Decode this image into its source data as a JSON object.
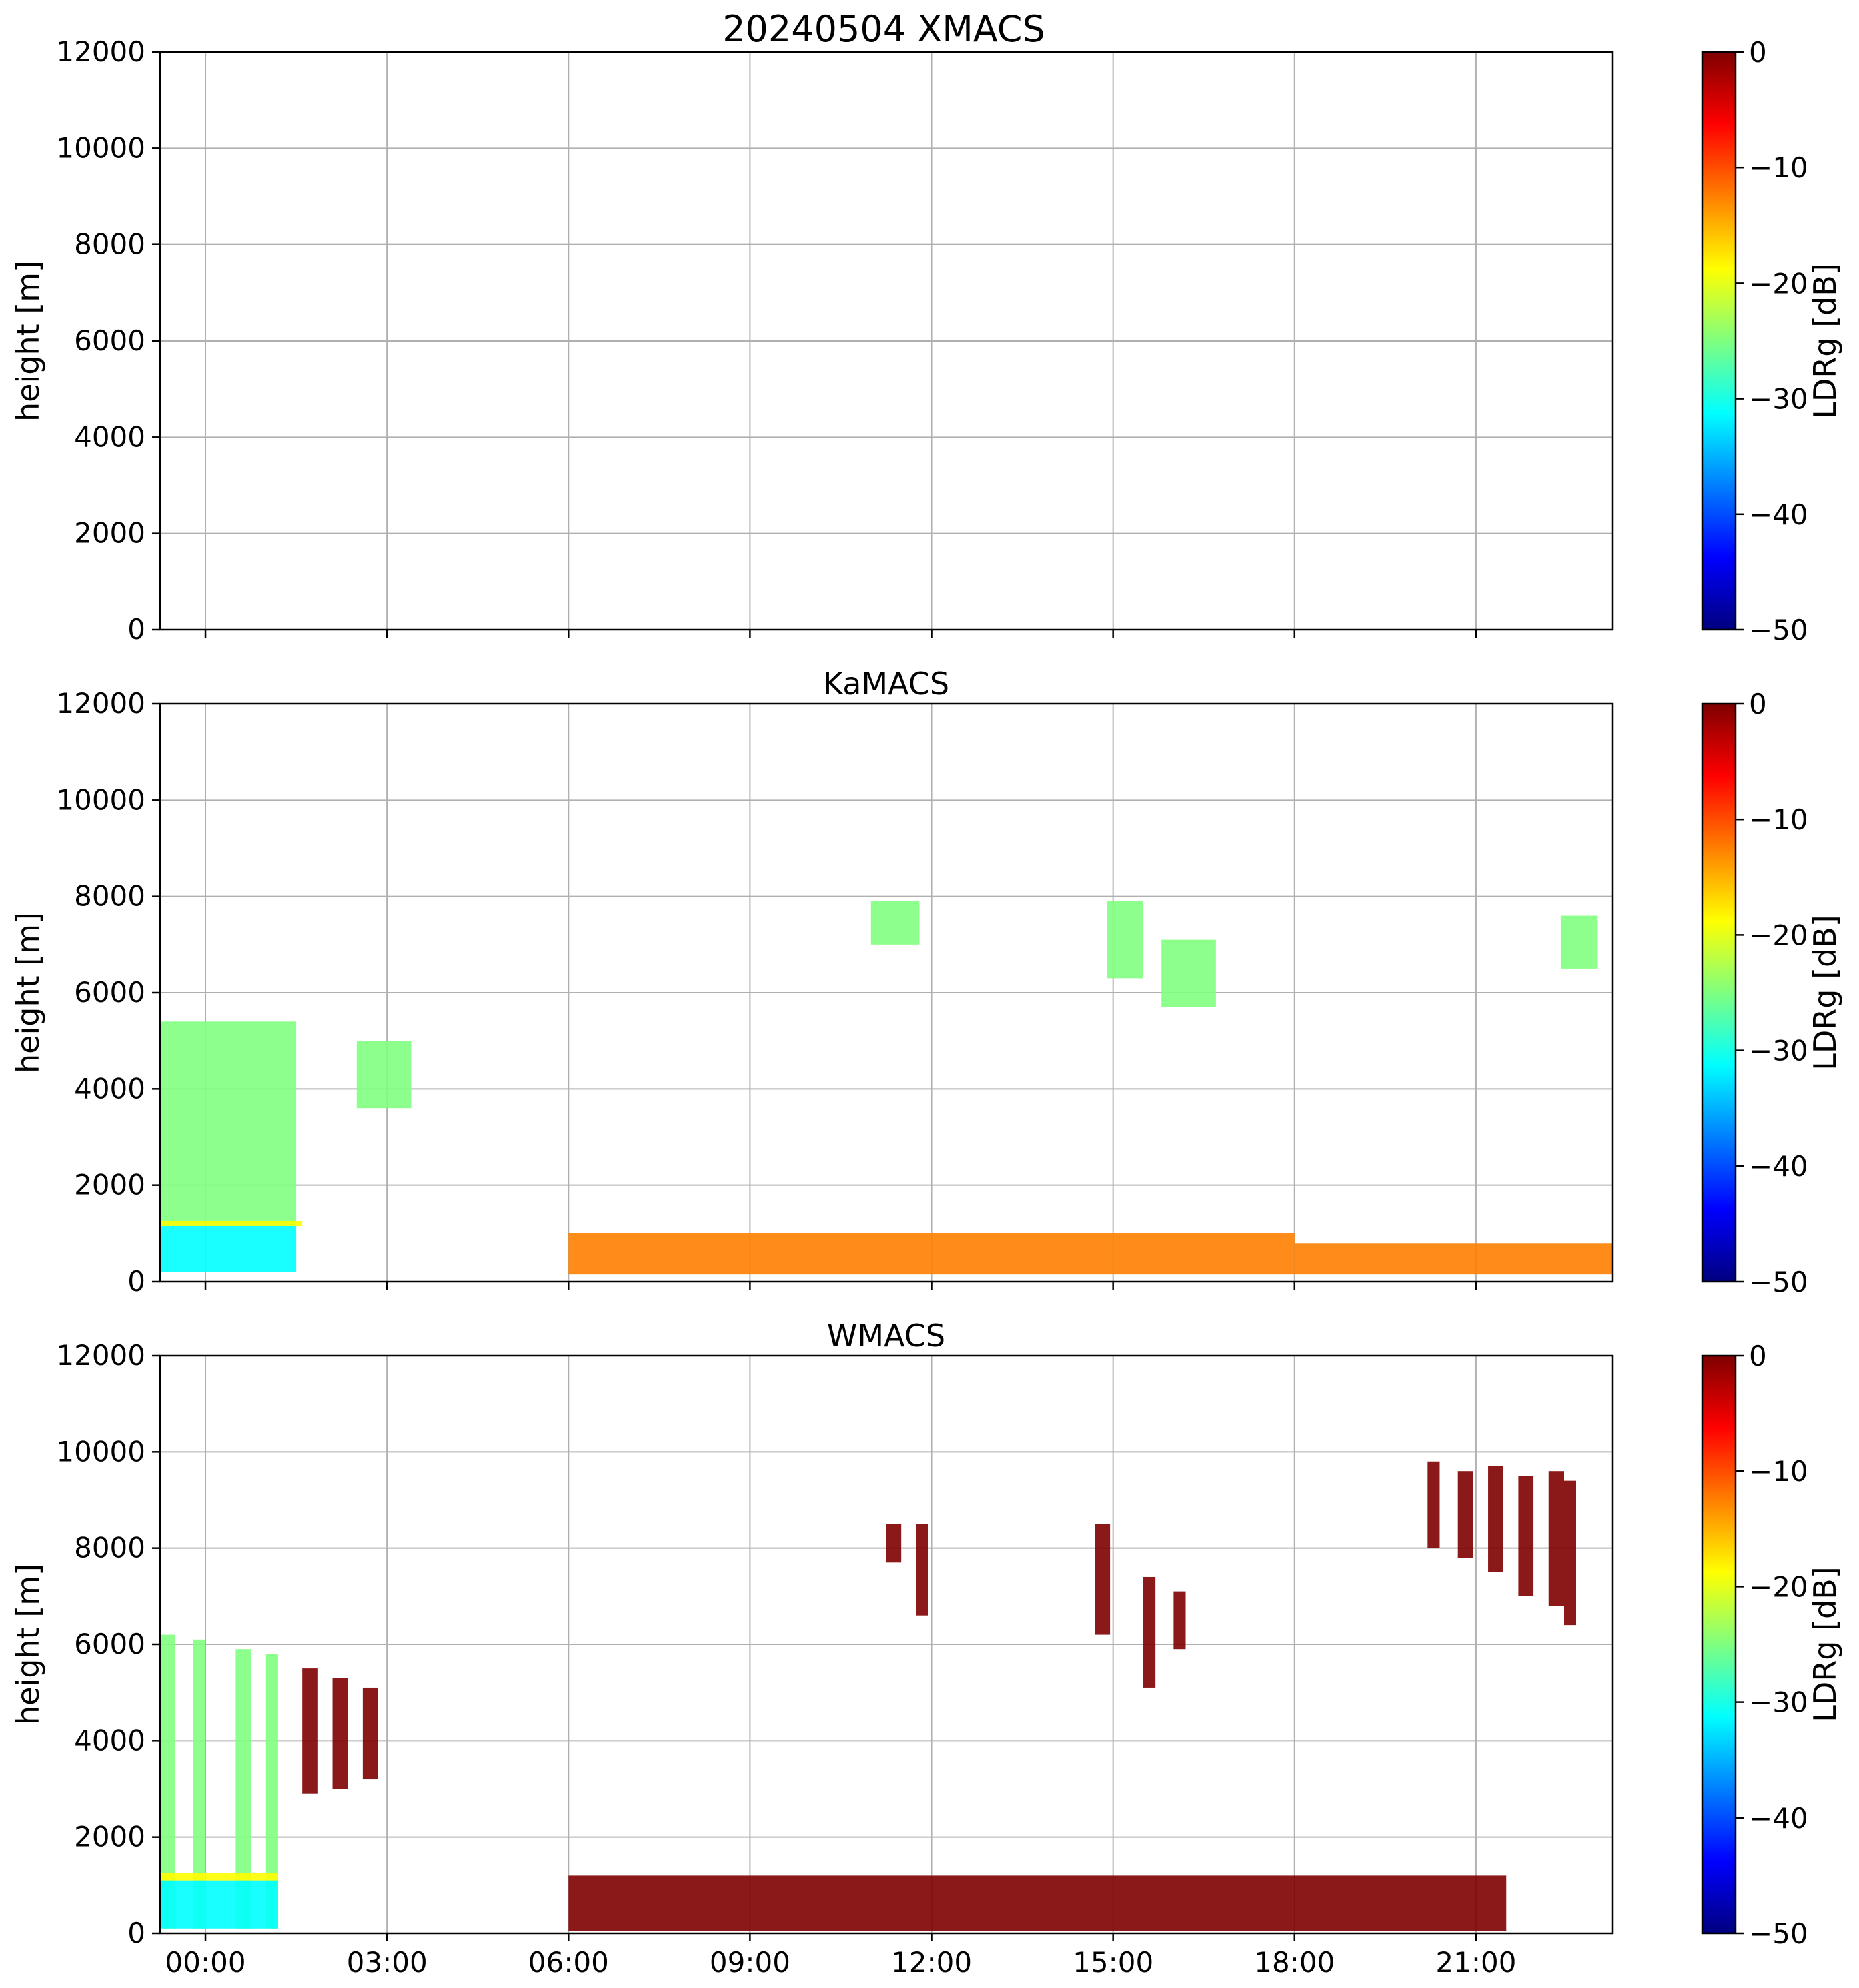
{
  "chart_data": {
    "type": "heatmap",
    "suptitle": "20240504 XMACS",
    "x_tick_labels": [
      "00:00",
      "03:00",
      "06:00",
      "09:00",
      "12:00",
      "15:00",
      "18:00",
      "21:00"
    ],
    "x_tick_hours": [
      0,
      3,
      6,
      9,
      12,
      15,
      18,
      21
    ],
    "xlim_hours": [
      -0.75,
      23.25
    ],
    "grid": true,
    "colormap": "jet",
    "colormap_stops": [
      "#00007f",
      "#0000ff",
      "#007fff",
      "#00ffff",
      "#7fff7f",
      "#ffff00",
      "#ff7f00",
      "#ff0000",
      "#7f0000"
    ],
    "panels": [
      {
        "title": "",
        "ylabel": "height [m]",
        "ylim": [
          0,
          12000
        ],
        "y_ticks": [
          0,
          2000,
          4000,
          6000,
          8000,
          10000,
          12000
        ],
        "colorbar": {
          "label": "LDRg [dB]",
          "range": [
            -50,
            0
          ],
          "ticks": [
            "0",
            "−10",
            "−20",
            "−30",
            "−40",
            "−50"
          ],
          "tick_values": [
            0,
            -10,
            -20,
            -30,
            -40,
            -50
          ]
        },
        "regions": []
      },
      {
        "title": "KaMACS",
        "ylabel": "height [m]",
        "ylim": [
          0,
          12000
        ],
        "y_ticks": [
          0,
          2000,
          4000,
          6000,
          8000,
          10000,
          12000
        ],
        "colorbar": {
          "label": "LDRg [dB]",
          "range": [
            -50,
            0
          ],
          "ticks": [
            "0",
            "−10",
            "−20",
            "−30",
            "−40",
            "−50"
          ],
          "tick_values": [
            0,
            -10,
            -20,
            -30,
            -40,
            -50
          ]
        },
        "regions": [
          {
            "t0": -0.75,
            "t1": 1.5,
            "h0": 200,
            "h1": 1200,
            "ldr": -32
          },
          {
            "t0": -0.75,
            "t1": 1.5,
            "h0": 1200,
            "h1": 5400,
            "ldr": -26
          },
          {
            "t0": -0.75,
            "t1": 1.6,
            "h0": 1150,
            "h1": 1250,
            "ldr": -20
          },
          {
            "t0": 2.5,
            "t1": 3.4,
            "h0": 3600,
            "h1": 5000,
            "ldr": -27
          },
          {
            "t0": 11.0,
            "t1": 11.8,
            "h0": 7000,
            "h1": 7900,
            "ldr": -28
          },
          {
            "t0": 14.9,
            "t1": 15.5,
            "h0": 6300,
            "h1": 7900,
            "ldr": -26
          },
          {
            "t0": 15.8,
            "t1": 16.7,
            "h0": 5700,
            "h1": 7100,
            "ldr": -28
          },
          {
            "t0": 22.4,
            "t1": 23.0,
            "h0": 6500,
            "h1": 7600,
            "ldr": -28
          },
          {
            "t0": 6.0,
            "t1": 18.0,
            "h0": 150,
            "h1": 1000,
            "ldr": -11
          },
          {
            "t0": 18.0,
            "t1": 23.25,
            "h0": 150,
            "h1": 800,
            "ldr": -14
          }
        ]
      },
      {
        "title": "WMACS",
        "ylabel": "height [m]",
        "ylim": [
          0,
          12000
        ],
        "y_ticks": [
          0,
          2000,
          4000,
          6000,
          8000,
          10000,
          12000
        ],
        "colorbar": {
          "label": "LDRg [dB]",
          "range": [
            -50,
            0
          ],
          "ticks": [
            "0",
            "−10",
            "−20",
            "−30",
            "−40",
            "−50"
          ],
          "tick_values": [
            0,
            -10,
            -20,
            -30,
            -40,
            -50
          ]
        },
        "regions": [
          {
            "t0": -0.75,
            "t1": -0.5,
            "h0": 100,
            "h1": 6200,
            "ldr": -24
          },
          {
            "t0": -0.2,
            "t1": 0.0,
            "h0": 100,
            "h1": 6100,
            "ldr": -24
          },
          {
            "t0": 0.5,
            "t1": 0.75,
            "h0": 100,
            "h1": 5900,
            "ldr": -24
          },
          {
            "t0": 1.0,
            "t1": 1.2,
            "h0": 100,
            "h1": 5800,
            "ldr": -24
          },
          {
            "t0": 1.6,
            "t1": 1.85,
            "h0": 2900,
            "h1": 5500,
            "ldr": -1
          },
          {
            "t0": 2.1,
            "t1": 2.35,
            "h0": 3000,
            "h1": 5300,
            "ldr": -1
          },
          {
            "t0": 2.6,
            "t1": 2.85,
            "h0": 3200,
            "h1": 5100,
            "ldr": -1
          },
          {
            "t0": 11.25,
            "t1": 11.5,
            "h0": 7700,
            "h1": 8500,
            "ldr": -1
          },
          {
            "t0": 11.75,
            "t1": 11.95,
            "h0": 6600,
            "h1": 8500,
            "ldr": -1
          },
          {
            "t0": 14.7,
            "t1": 14.95,
            "h0": 6200,
            "h1": 8500,
            "ldr": -1
          },
          {
            "t0": 15.5,
            "t1": 15.7,
            "h0": 5100,
            "h1": 7400,
            "ldr": -1
          },
          {
            "t0": 16.0,
            "t1": 16.2,
            "h0": 5900,
            "h1": 7100,
            "ldr": -1
          },
          {
            "t0": 20.2,
            "t1": 20.4,
            "h0": 8000,
            "h1": 9800,
            "ldr": -1
          },
          {
            "t0": 20.7,
            "t1": 20.95,
            "h0": 7800,
            "h1": 9600,
            "ldr": -1
          },
          {
            "t0": 21.2,
            "t1": 21.45,
            "h0": 7500,
            "h1": 9700,
            "ldr": -1
          },
          {
            "t0": 21.7,
            "t1": 21.95,
            "h0": 7000,
            "h1": 9500,
            "ldr": -1
          },
          {
            "t0": 22.2,
            "t1": 22.45,
            "h0": 6800,
            "h1": 9600,
            "ldr": -1
          },
          {
            "t0": 22.45,
            "t1": 22.65,
            "h0": 6400,
            "h1": 9400,
            "ldr": -1
          },
          {
            "t0": 6.0,
            "t1": 21.5,
            "h0": 50,
            "h1": 1200,
            "ldr": -3
          },
          {
            "t0": -0.75,
            "t1": 1.2,
            "h0": 100,
            "h1": 1100,
            "ldr": -33
          },
          {
            "t0": -0.75,
            "t1": 1.2,
            "h0": 1100,
            "h1": 1250,
            "ldr": -20
          }
        ]
      }
    ]
  }
}
